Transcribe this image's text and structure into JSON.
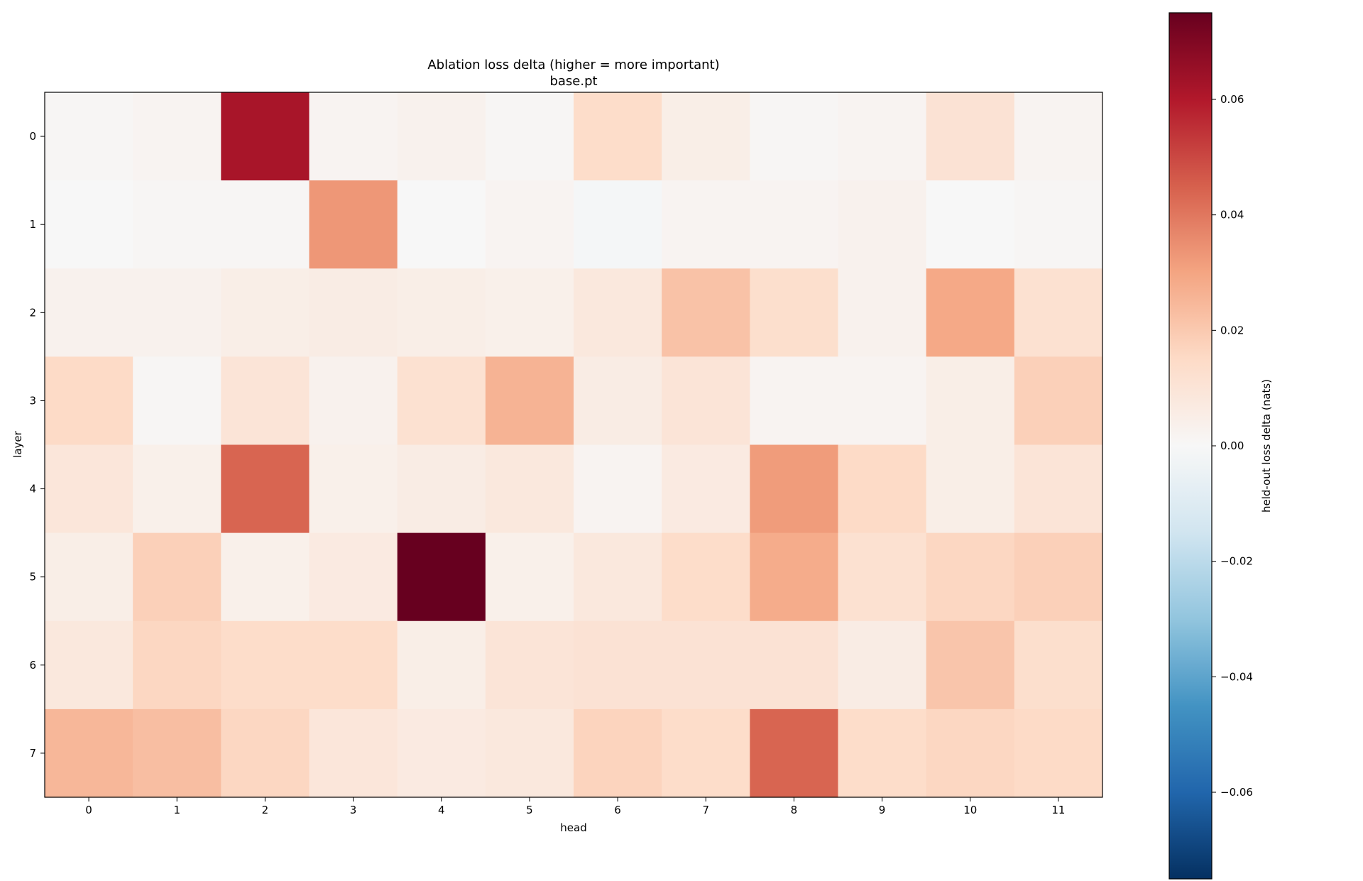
{
  "chart_data": {
    "type": "heatmap",
    "title": "Ablation loss delta (higher = more important)",
    "subtitle": "base.pt",
    "xlabel": "head",
    "ylabel": "layer",
    "x_categories": [
      "0",
      "1",
      "2",
      "3",
      "4",
      "5",
      "6",
      "7",
      "8",
      "9",
      "10",
      "11"
    ],
    "y_categories": [
      "0",
      "1",
      "2",
      "3",
      "4",
      "5",
      "6",
      "7"
    ],
    "values": [
      [
        0.001,
        0.002,
        0.062,
        0.002,
        0.003,
        0.001,
        0.014,
        0.005,
        0.001,
        0.002,
        0.011,
        0.002
      ],
      [
        0.0,
        0.001,
        0.001,
        0.033,
        0.0,
        0.002,
        -0.001,
        0.002,
        0.002,
        0.003,
        0.0,
        0.001
      ],
      [
        0.003,
        0.003,
        0.005,
        0.006,
        0.005,
        0.004,
        0.008,
        0.022,
        0.013,
        0.003,
        0.029,
        0.012
      ],
      [
        0.015,
        0.001,
        0.01,
        0.003,
        0.012,
        0.026,
        0.006,
        0.01,
        0.002,
        0.002,
        0.005,
        0.018
      ],
      [
        0.009,
        0.004,
        0.044,
        0.004,
        0.006,
        0.008,
        0.002,
        0.007,
        0.032,
        0.015,
        0.005,
        0.01
      ],
      [
        0.005,
        0.018,
        0.004,
        0.007,
        0.075,
        0.004,
        0.008,
        0.014,
        0.028,
        0.012,
        0.016,
        0.018
      ],
      [
        0.008,
        0.016,
        0.014,
        0.014,
        0.005,
        0.01,
        0.011,
        0.011,
        0.011,
        0.006,
        0.021,
        0.013
      ],
      [
        0.025,
        0.023,
        0.016,
        0.009,
        0.007,
        0.008,
        0.017,
        0.014,
        0.044,
        0.014,
        0.016,
        0.015
      ]
    ],
    "colorbar": {
      "label": "held-out loss delta (nats)",
      "colormap": "RdBu_r",
      "vmin": -0.075,
      "vmax": 0.075,
      "ticks": [
        0.06,
        0.04,
        0.02,
        0.0,
        -0.02,
        -0.04,
        -0.06
      ],
      "tick_labels": [
        "0.06",
        "0.04",
        "0.02",
        "0.00",
        "−0.02",
        "−0.04",
        "−0.06"
      ]
    },
    "grid": false
  }
}
